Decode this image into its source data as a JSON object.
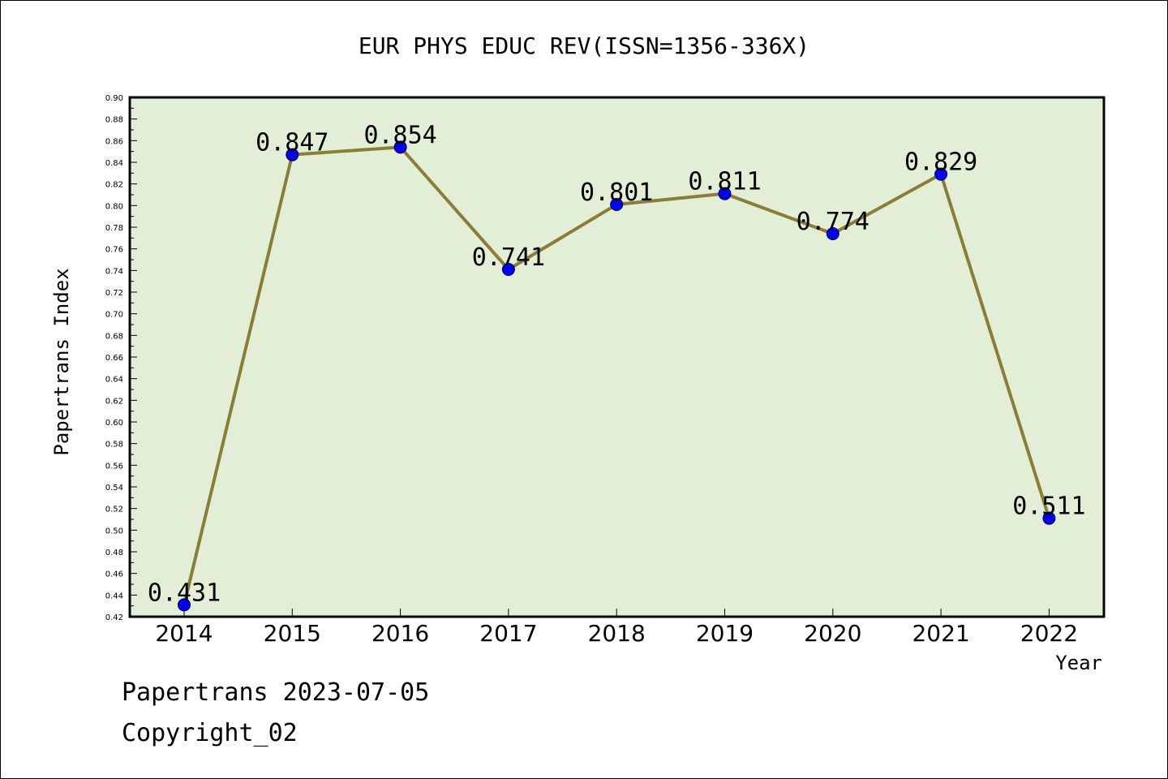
{
  "chart_data": {
    "type": "line",
    "title": "EUR PHYS EDUC REV(ISSN=1356-336X)",
    "xlabel": "Year",
    "ylabel": "Papertrans Index",
    "categories": [
      "2014",
      "2015",
      "2016",
      "2017",
      "2018",
      "2019",
      "2020",
      "2021",
      "2022"
    ],
    "series": [
      {
        "values": [
          0.431,
          0.847,
          0.854,
          0.741,
          0.801,
          0.811,
          0.774,
          0.829,
          0.511
        ],
        "data_labels": [
          "0.431",
          "0.847",
          "0.854",
          "0.741",
          "0.801",
          "0.811",
          "0.774",
          "0.829",
          "0.511"
        ]
      }
    ],
    "ylim": [
      0.42,
      0.9
    ],
    "yticks": [
      "0.42",
      "0.44",
      "0.46",
      "0.48",
      "0.50",
      "0.52",
      "0.54",
      "0.56",
      "0.58",
      "0.60",
      "0.62",
      "0.64",
      "0.66",
      "0.68",
      "0.70",
      "0.72",
      "0.74",
      "0.76",
      "0.78",
      "0.80",
      "0.82",
      "0.84",
      "0.86",
      "0.88",
      "0.90"
    ],
    "grid": false,
    "colors": {
      "plot_bg": "#e2efd6",
      "line": "#8b7d35",
      "marker": "#0000ff"
    }
  },
  "footer": {
    "date_line": "Papertrans 2023-07-05",
    "copyright": "Copyright_02"
  }
}
